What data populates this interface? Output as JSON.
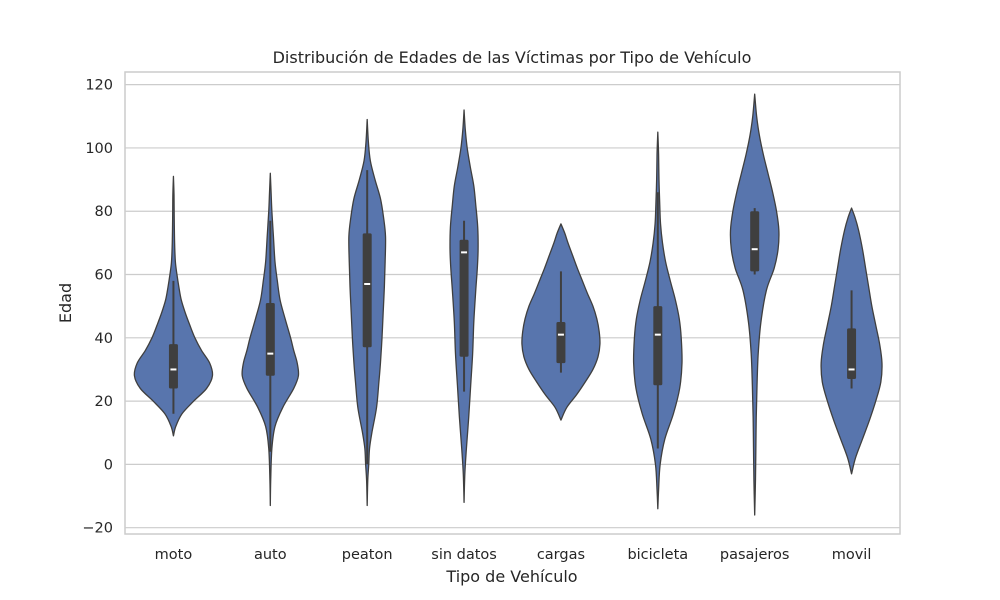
{
  "chart_data": {
    "type": "violin",
    "title": "Distribución de Edades de las Víctimas por Tipo de Vehículo",
    "xlabel": "Tipo de Vehículo",
    "ylabel": "Edad",
    "ylim": [
      -22,
      124
    ],
    "yticks": [
      -20,
      0,
      20,
      40,
      60,
      80,
      100,
      120
    ],
    "grid": true,
    "colors": {
      "violin": "#5875ad",
      "outline": "#3f3f3f",
      "box": "#3f3f3f",
      "median": "#ffffff",
      "grid": "#cccccc"
    },
    "categories": [
      "moto",
      "auto",
      "peaton",
      "sin datos",
      "cargas",
      "bicicleta",
      "pasajeros",
      "movil"
    ],
    "series": [
      {
        "category": "moto",
        "min": 9,
        "max": 91,
        "whisker_low": 16,
        "whisker_high": 58,
        "q1": 24,
        "median": 30,
        "q3": 38,
        "density": [
          [
            9,
            0
          ],
          [
            12,
            0.06
          ],
          [
            16,
            0.22
          ],
          [
            20,
            0.52
          ],
          [
            24,
            0.85
          ],
          [
            28,
            1.0
          ],
          [
            32,
            0.93
          ],
          [
            36,
            0.72
          ],
          [
            40,
            0.55
          ],
          [
            44,
            0.42
          ],
          [
            48,
            0.3
          ],
          [
            52,
            0.2
          ],
          [
            56,
            0.14
          ],
          [
            60,
            0.09
          ],
          [
            64,
            0.05
          ],
          [
            70,
            0.03
          ],
          [
            78,
            0.02
          ],
          [
            85,
            0.015
          ],
          [
            91,
            0
          ]
        ]
      },
      {
        "category": "auto",
        "min": -13,
        "max": 92,
        "whisker_low": 4,
        "whisker_high": 77,
        "q1": 28,
        "median": 35,
        "q3": 51,
        "density": [
          [
            -13,
            0
          ],
          [
            -5,
            0.01
          ],
          [
            5,
            0.04
          ],
          [
            12,
            0.12
          ],
          [
            18,
            0.32
          ],
          [
            24,
            0.6
          ],
          [
            28,
            0.72
          ],
          [
            32,
            0.69
          ],
          [
            36,
            0.6
          ],
          [
            40,
            0.52
          ],
          [
            46,
            0.38
          ],
          [
            52,
            0.25
          ],
          [
            58,
            0.18
          ],
          [
            64,
            0.12
          ],
          [
            72,
            0.08
          ],
          [
            80,
            0.04
          ],
          [
            86,
            0.02
          ],
          [
            92,
            0
          ]
        ]
      },
      {
        "category": "peaton",
        "min": -13,
        "max": 109,
        "whisker_low": 0,
        "whisker_high": 93,
        "q1": 37,
        "median": 57,
        "q3": 73,
        "density": [
          [
            -13,
            0
          ],
          [
            -5,
            0.015
          ],
          [
            0,
            0.04
          ],
          [
            5,
            0.06
          ],
          [
            10,
            0.12
          ],
          [
            18,
            0.24
          ],
          [
            26,
            0.3
          ],
          [
            32,
            0.34
          ],
          [
            40,
            0.38
          ],
          [
            48,
            0.41
          ],
          [
            56,
            0.44
          ],
          [
            64,
            0.46
          ],
          [
            72,
            0.47
          ],
          [
            78,
            0.42
          ],
          [
            84,
            0.34
          ],
          [
            90,
            0.2
          ],
          [
            96,
            0.08
          ],
          [
            102,
            0.03
          ],
          [
            109,
            0
          ]
        ]
      },
      {
        "category": "sin datos",
        "min": -12,
        "max": 112,
        "whisker_low": 23,
        "whisker_high": 77,
        "q1": 34,
        "median": 67,
        "q3": 71,
        "density": [
          [
            -12,
            0
          ],
          [
            -3,
            0.02
          ],
          [
            5,
            0.06
          ],
          [
            15,
            0.12
          ],
          [
            25,
            0.17
          ],
          [
            35,
            0.22
          ],
          [
            45,
            0.25
          ],
          [
            55,
            0.3
          ],
          [
            62,
            0.34
          ],
          [
            68,
            0.36
          ],
          [
            75,
            0.35
          ],
          [
            82,
            0.3
          ],
          [
            88,
            0.25
          ],
          [
            94,
            0.16
          ],
          [
            100,
            0.08
          ],
          [
            106,
            0.03
          ],
          [
            112,
            0
          ]
        ]
      },
      {
        "category": "cargas",
        "min": 14,
        "max": 76,
        "whisker_low": 29,
        "whisker_high": 61,
        "q1": 32,
        "median": 41,
        "q3": 45,
        "density": [
          [
            14,
            0
          ],
          [
            18,
            0.15
          ],
          [
            22,
            0.4
          ],
          [
            26,
            0.62
          ],
          [
            30,
            0.82
          ],
          [
            34,
            0.95
          ],
          [
            38,
            1.0
          ],
          [
            42,
            0.98
          ],
          [
            46,
            0.92
          ],
          [
            50,
            0.82
          ],
          [
            54,
            0.68
          ],
          [
            58,
            0.55
          ],
          [
            62,
            0.42
          ],
          [
            66,
            0.3
          ],
          [
            70,
            0.18
          ],
          [
            73,
            0.1
          ],
          [
            76,
            0
          ]
        ]
      },
      {
        "category": "bicicleta",
        "min": -14,
        "max": 105,
        "whisker_low": 5,
        "whisker_high": 86,
        "q1": 25,
        "median": 41,
        "q3": 50,
        "density": [
          [
            -14,
            0
          ],
          [
            -8,
            0.02
          ],
          [
            0,
            0.06
          ],
          [
            8,
            0.18
          ],
          [
            16,
            0.4
          ],
          [
            24,
            0.56
          ],
          [
            32,
            0.62
          ],
          [
            40,
            0.6
          ],
          [
            46,
            0.55
          ],
          [
            52,
            0.45
          ],
          [
            58,
            0.32
          ],
          [
            64,
            0.2
          ],
          [
            70,
            0.12
          ],
          [
            76,
            0.07
          ],
          [
            82,
            0.05
          ],
          [
            90,
            0.03
          ],
          [
            98,
            0.02
          ],
          [
            105,
            0
          ]
        ]
      },
      {
        "category": "pasajeros",
        "min": -16,
        "max": 117,
        "whisker_low": 60,
        "whisker_high": 81,
        "q1": 61,
        "median": 68,
        "q3": 80,
        "density": [
          [
            -16,
            0
          ],
          [
            -5,
            0.02
          ],
          [
            5,
            0.03
          ],
          [
            15,
            0.04
          ],
          [
            25,
            0.06
          ],
          [
            35,
            0.09
          ],
          [
            45,
            0.16
          ],
          [
            55,
            0.3
          ],
          [
            62,
            0.5
          ],
          [
            68,
            0.6
          ],
          [
            74,
            0.62
          ],
          [
            80,
            0.56
          ],
          [
            86,
            0.46
          ],
          [
            92,
            0.34
          ],
          [
            98,
            0.22
          ],
          [
            104,
            0.12
          ],
          [
            110,
            0.05
          ],
          [
            117,
            0
          ]
        ]
      },
      {
        "category": "movil",
        "min": -3,
        "max": 81,
        "whisker_low": 24,
        "whisker_high": 55,
        "q1": 27,
        "median": 30,
        "q3": 43,
        "density": [
          [
            -3,
            0
          ],
          [
            2,
            0.1
          ],
          [
            8,
            0.28
          ],
          [
            14,
            0.46
          ],
          [
            20,
            0.62
          ],
          [
            26,
            0.75
          ],
          [
            32,
            0.78
          ],
          [
            38,
            0.72
          ],
          [
            44,
            0.62
          ],
          [
            50,
            0.52
          ],
          [
            56,
            0.44
          ],
          [
            62,
            0.36
          ],
          [
            68,
            0.28
          ],
          [
            74,
            0.18
          ],
          [
            78,
            0.09
          ],
          [
            81,
            0
          ]
        ]
      }
    ]
  }
}
